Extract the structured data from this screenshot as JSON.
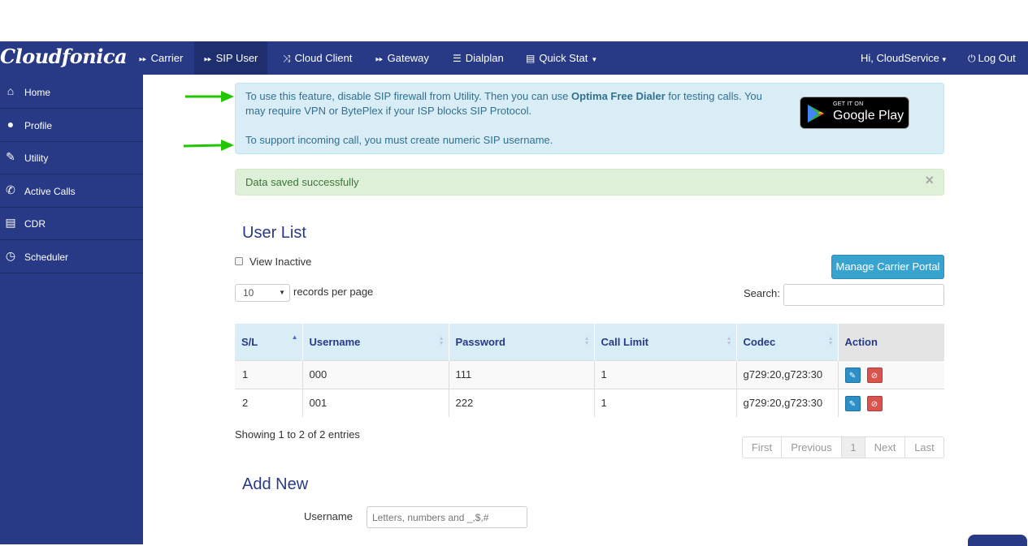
{
  "brand": "Cloudfonica",
  "nav": {
    "carrier": "Carrier",
    "sip_user": "SIP User",
    "cloud_client": "Cloud Client",
    "gateway": "Gateway",
    "dialplan": "Dialplan",
    "quick_stat": "Quick Stat",
    "user_greeting": "Hi, CloudService",
    "logout": "Log Out"
  },
  "sidebar": {
    "items": [
      {
        "label": "Home",
        "icon": "home-icon"
      },
      {
        "label": "Profile",
        "icon": "user-icon"
      },
      {
        "label": "Utility",
        "icon": "wrench-icon"
      },
      {
        "label": "Active Calls",
        "icon": "phone-icon"
      },
      {
        "label": "CDR",
        "icon": "book-icon"
      },
      {
        "label": "Scheduler",
        "icon": "clock-icon"
      }
    ]
  },
  "info": {
    "line1_pre": "To use this feature, disable SIP firewall from Utility. Then you can use ",
    "line1_bold": "Optima Free Dialer",
    "line1_post": " for testing calls. You",
    "line2": "may require VPN or BytePlex if your ISP blocks SIP Protocol.",
    "line3": "To support incoming call, you must create numeric SIP username.",
    "gplay_small": "GET IT ON",
    "gplay_big": "Google Play"
  },
  "success": {
    "message": "Data saved successfully",
    "close": "×"
  },
  "user_list": {
    "title": "User List",
    "view_inactive": "View Inactive",
    "manage_button": "Manage Carrier Portal",
    "page_size": "10",
    "records_per_page": "records per page",
    "search_label": "Search:",
    "search_value": "",
    "columns": [
      "S/L",
      "Username",
      "Password",
      "Call Limit",
      "Codec",
      "Action"
    ],
    "rows": [
      {
        "sl": "1",
        "username": "000",
        "password": "111",
        "call_limit": "1",
        "codec": "g729:20,g723:30"
      },
      {
        "sl": "2",
        "username": "001",
        "password": "222",
        "call_limit": "1",
        "codec": "g729:20,g723:30"
      }
    ],
    "showing": "Showing 1 to 2 of 2 entries",
    "pagination": {
      "first": "First",
      "previous": "Previous",
      "current": "1",
      "next": "Next",
      "last": "Last"
    }
  },
  "add_new": {
    "title": "Add New",
    "username_label": "Username",
    "username_placeholder": "Letters, numbers and _,$,#"
  },
  "colors": {
    "nav": "#283a85",
    "nav_active": "#1f2e6e",
    "title": "#283a85",
    "arrow": "#22c600"
  }
}
